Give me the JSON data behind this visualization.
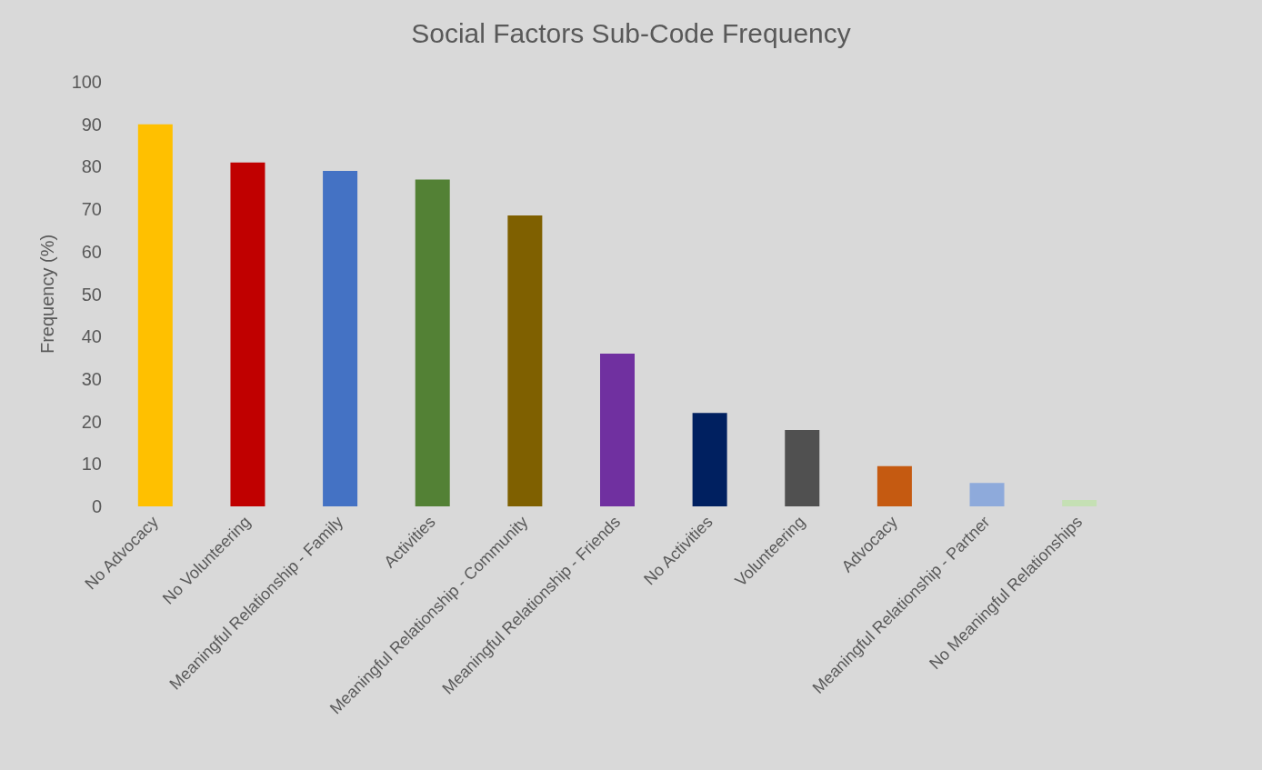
{
  "chart_data": {
    "type": "bar",
    "title": "Social Factors Sub-Code Frequency",
    "ylabel": "Frequency (%)",
    "categories": [
      "No Advocacy",
      "No Volunteering",
      "Meaningful Relationship - Family",
      "Activities",
      "Meaningful Relationship - Community",
      "Meaningful Relationship - Friends",
      "No Activities",
      "Volunteering",
      "Advocacy",
      "Meaningful Relationship - Partner",
      "No Meaningful Relationships"
    ],
    "values": [
      90,
      81,
      79,
      77,
      68.5,
      36,
      22,
      18,
      9.5,
      5.5,
      1.5
    ],
    "colors": [
      "#ffc000",
      "#c00000",
      "#4472c4",
      "#538135",
      "#7f6000",
      "#7030a0",
      "#002060",
      "#505050",
      "#c55a11",
      "#8eaadb",
      "#c5e0b4"
    ],
    "ylim": [
      0,
      100
    ],
    "yticks": [
      0,
      10,
      20,
      30,
      40,
      50,
      60,
      70,
      80,
      90,
      100
    ],
    "grid": false
  }
}
